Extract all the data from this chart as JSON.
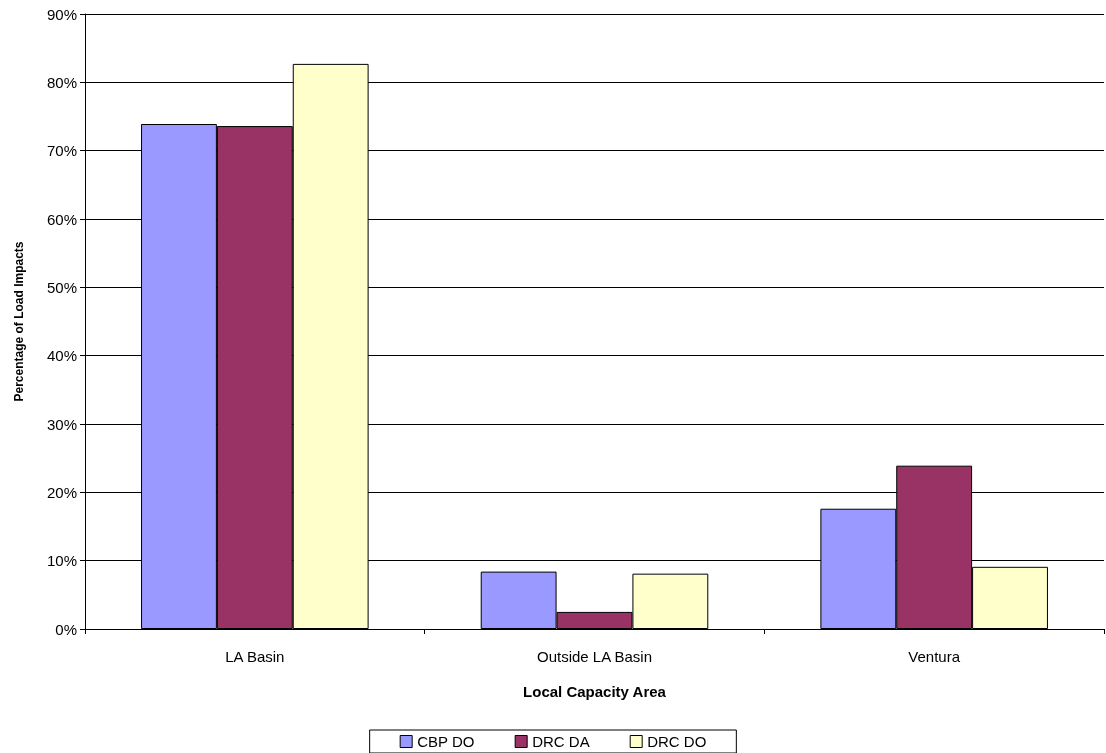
{
  "chart_data": {
    "type": "bar",
    "xlabel": "Local Capacity Area",
    "ylabel": "Percentage of Load Impacts",
    "categories": [
      "LA Basin",
      "Outside LA Basin",
      "Ventura"
    ],
    "series": [
      {
        "name": "CBP DO",
        "color": "#9999ff",
        "values": [
          73.9,
          8.4,
          17.6
        ]
      },
      {
        "name": "DRC DA",
        "color": "#993366",
        "values": [
          73.6,
          2.5,
          23.9
        ]
      },
      {
        "name": "DRC DO",
        "color": "#ffffcc",
        "values": [
          82.7,
          8.1,
          9.1
        ]
      }
    ],
    "ylim": [
      0,
      90
    ],
    "yticks": [
      {
        "value": 0,
        "label": "0%"
      },
      {
        "value": 10,
        "label": "10%"
      },
      {
        "value": 20,
        "label": "20%"
      },
      {
        "value": 30,
        "label": "30%"
      },
      {
        "value": 40,
        "label": "40%"
      },
      {
        "value": 50,
        "label": "50%"
      },
      {
        "value": 60,
        "label": "60%"
      },
      {
        "value": 70,
        "label": "70%"
      },
      {
        "value": 80,
        "label": "80%"
      },
      {
        "value": 90,
        "label": "90%"
      }
    ],
    "grid": "y",
    "legend": "bottom"
  }
}
